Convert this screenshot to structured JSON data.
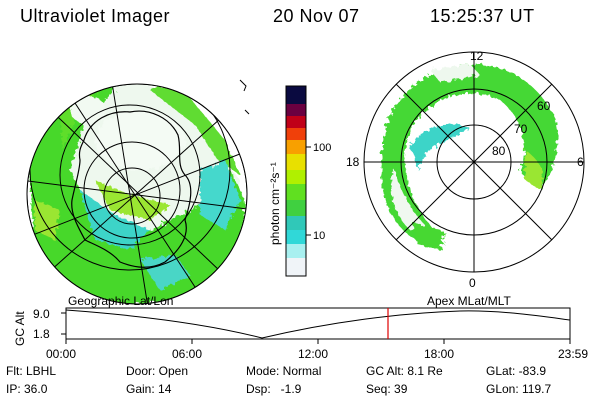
{
  "header": {
    "title": "Ultraviolet Imager",
    "date": "20 Nov 07",
    "time": "15:25:37 UT"
  },
  "colorbar": {
    "label": "photon cm⁻²s⁻¹",
    "ticks": [
      "100",
      "10"
    ]
  },
  "right_map": {
    "mlt_labels": [
      "12",
      "6",
      "0",
      "18"
    ],
    "lat_labels": [
      "60",
      "70",
      "80"
    ]
  },
  "timeline": {
    "left_label": "Geographic Lat/Lon",
    "right_label": "Apex  MLat/MLT",
    "axis_title": "GC Alt",
    "y_ticks": [
      "9.0",
      "1.8"
    ],
    "x_ticks": [
      "00:00",
      "06:00",
      "12:00",
      "18:00",
      "23:59"
    ],
    "marker_color": "#e00000"
  },
  "info": {
    "flt": "Flt: LBHL",
    "ip": "IP: 36.0",
    "door": "Door: Open",
    "gain": "Gain: 14",
    "mode": "Mode: Normal",
    "dsp": "Dsp:   -1.9",
    "gcalt": "GC Alt: 8.1 Re",
    "seq": "Seq: 39",
    "glat": "GLat: -83.9",
    "glon": "GLon: 119.7"
  }
}
